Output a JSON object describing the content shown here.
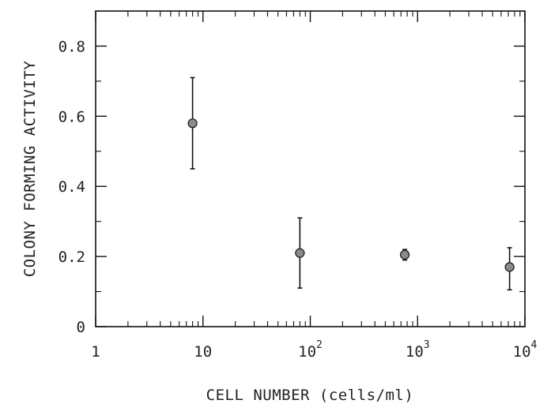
{
  "chart_data": {
    "type": "scatter",
    "title": "",
    "xlabel": "CELL NUMBER (cells/ml)",
    "ylabel": "COLONY FORMING ACTIVITY",
    "xscale": "log",
    "xlim": [
      1,
      10000
    ],
    "ylim": [
      0,
      0.9
    ],
    "grid": false,
    "legend": "none",
    "x_ticks": [
      {
        "value": 1,
        "base": "1",
        "exp": ""
      },
      {
        "value": 10,
        "base": "10",
        "exp": ""
      },
      {
        "value": 100,
        "base": "10",
        "exp": "2"
      },
      {
        "value": 1000,
        "base": "10",
        "exp": "3"
      },
      {
        "value": 10000,
        "base": "10",
        "exp": "4"
      }
    ],
    "y_ticks": [
      {
        "value": 0,
        "label": "0"
      },
      {
        "value": 0.2,
        "label": "0.2"
      },
      {
        "value": 0.4,
        "label": "0.4"
      },
      {
        "value": 0.6,
        "label": "0.6"
      },
      {
        "value": 0.8,
        "label": "0.8"
      }
    ],
    "points": [
      {
        "x": 8,
        "y": 0.58,
        "err_low": 0.45,
        "err_high": 0.71
      },
      {
        "x": 80,
        "y": 0.21,
        "err_low": 0.11,
        "err_high": 0.31
      },
      {
        "x": 760,
        "y": 0.205,
        "err_low": 0.19,
        "err_high": 0.22
      },
      {
        "x": 7200,
        "y": 0.17,
        "err_low": 0.105,
        "err_high": 0.225
      }
    ],
    "marker_color": "#8a8a8a",
    "line_color": "#111111"
  }
}
